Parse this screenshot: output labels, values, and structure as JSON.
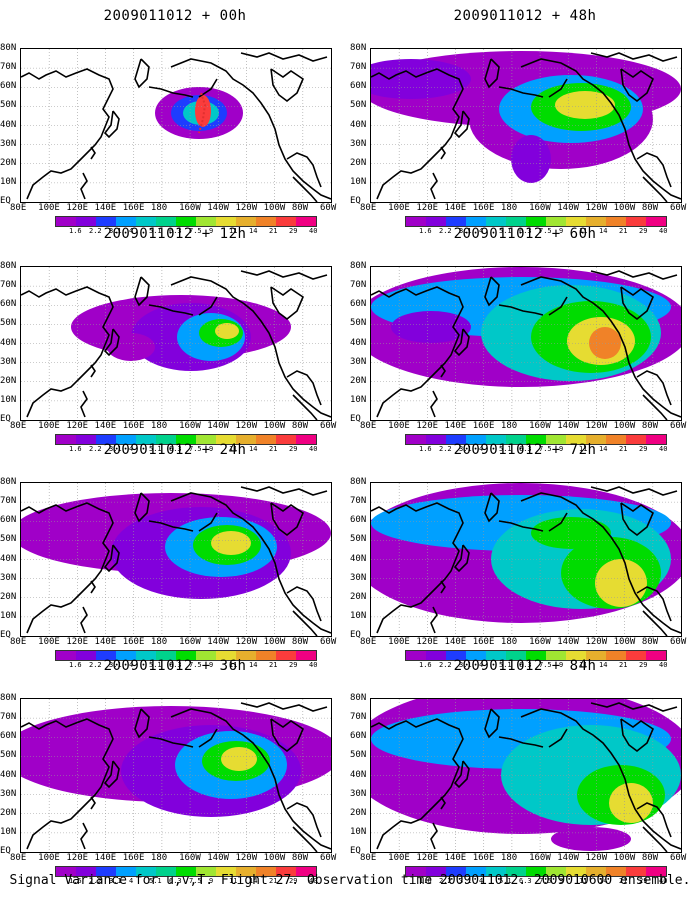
{
  "caption": "Signal Variance for u,v,T. Flight 27. Observation time 2009011012. 2009010600 ensemble.",
  "lat_labels": [
    "80N",
    "70N",
    "60N",
    "50N",
    "40N",
    "30N",
    "20N",
    "10N",
    "EQ"
  ],
  "lon_labels": [
    "80E",
    "100E",
    "120E",
    "140E",
    "160E",
    "180",
    "160W",
    "140W",
    "120W",
    "100W",
    "80W",
    "60W"
  ],
  "colorbar": {
    "levels": [
      "1.6",
      "2.2",
      "3.1",
      "4",
      "5.1",
      "6.3",
      "7.5",
      "9",
      "11",
      "14",
      "21",
      "29",
      "40"
    ],
    "colors": [
      "#a000c8",
      "#8200dc",
      "#1e3cff",
      "#00a0ff",
      "#00c8c8",
      "#00d28c",
      "#00dc00",
      "#a0e632",
      "#e6dc32",
      "#e6af2d",
      "#f08228",
      "#fa3c3c",
      "#f00082"
    ]
  },
  "panels": [
    {
      "title": "2009011012 + 00h"
    },
    {
      "title": "2009011012 + 48h"
    },
    {
      "title": "2009011012 + 12h"
    },
    {
      "title": "2009011012 + 60h"
    },
    {
      "title": "2009011012 + 24h"
    },
    {
      "title": "2009011012 + 72h"
    },
    {
      "title": "2009011012 + 36h"
    },
    {
      "title": "2009011012 + 84h"
    }
  ]
}
